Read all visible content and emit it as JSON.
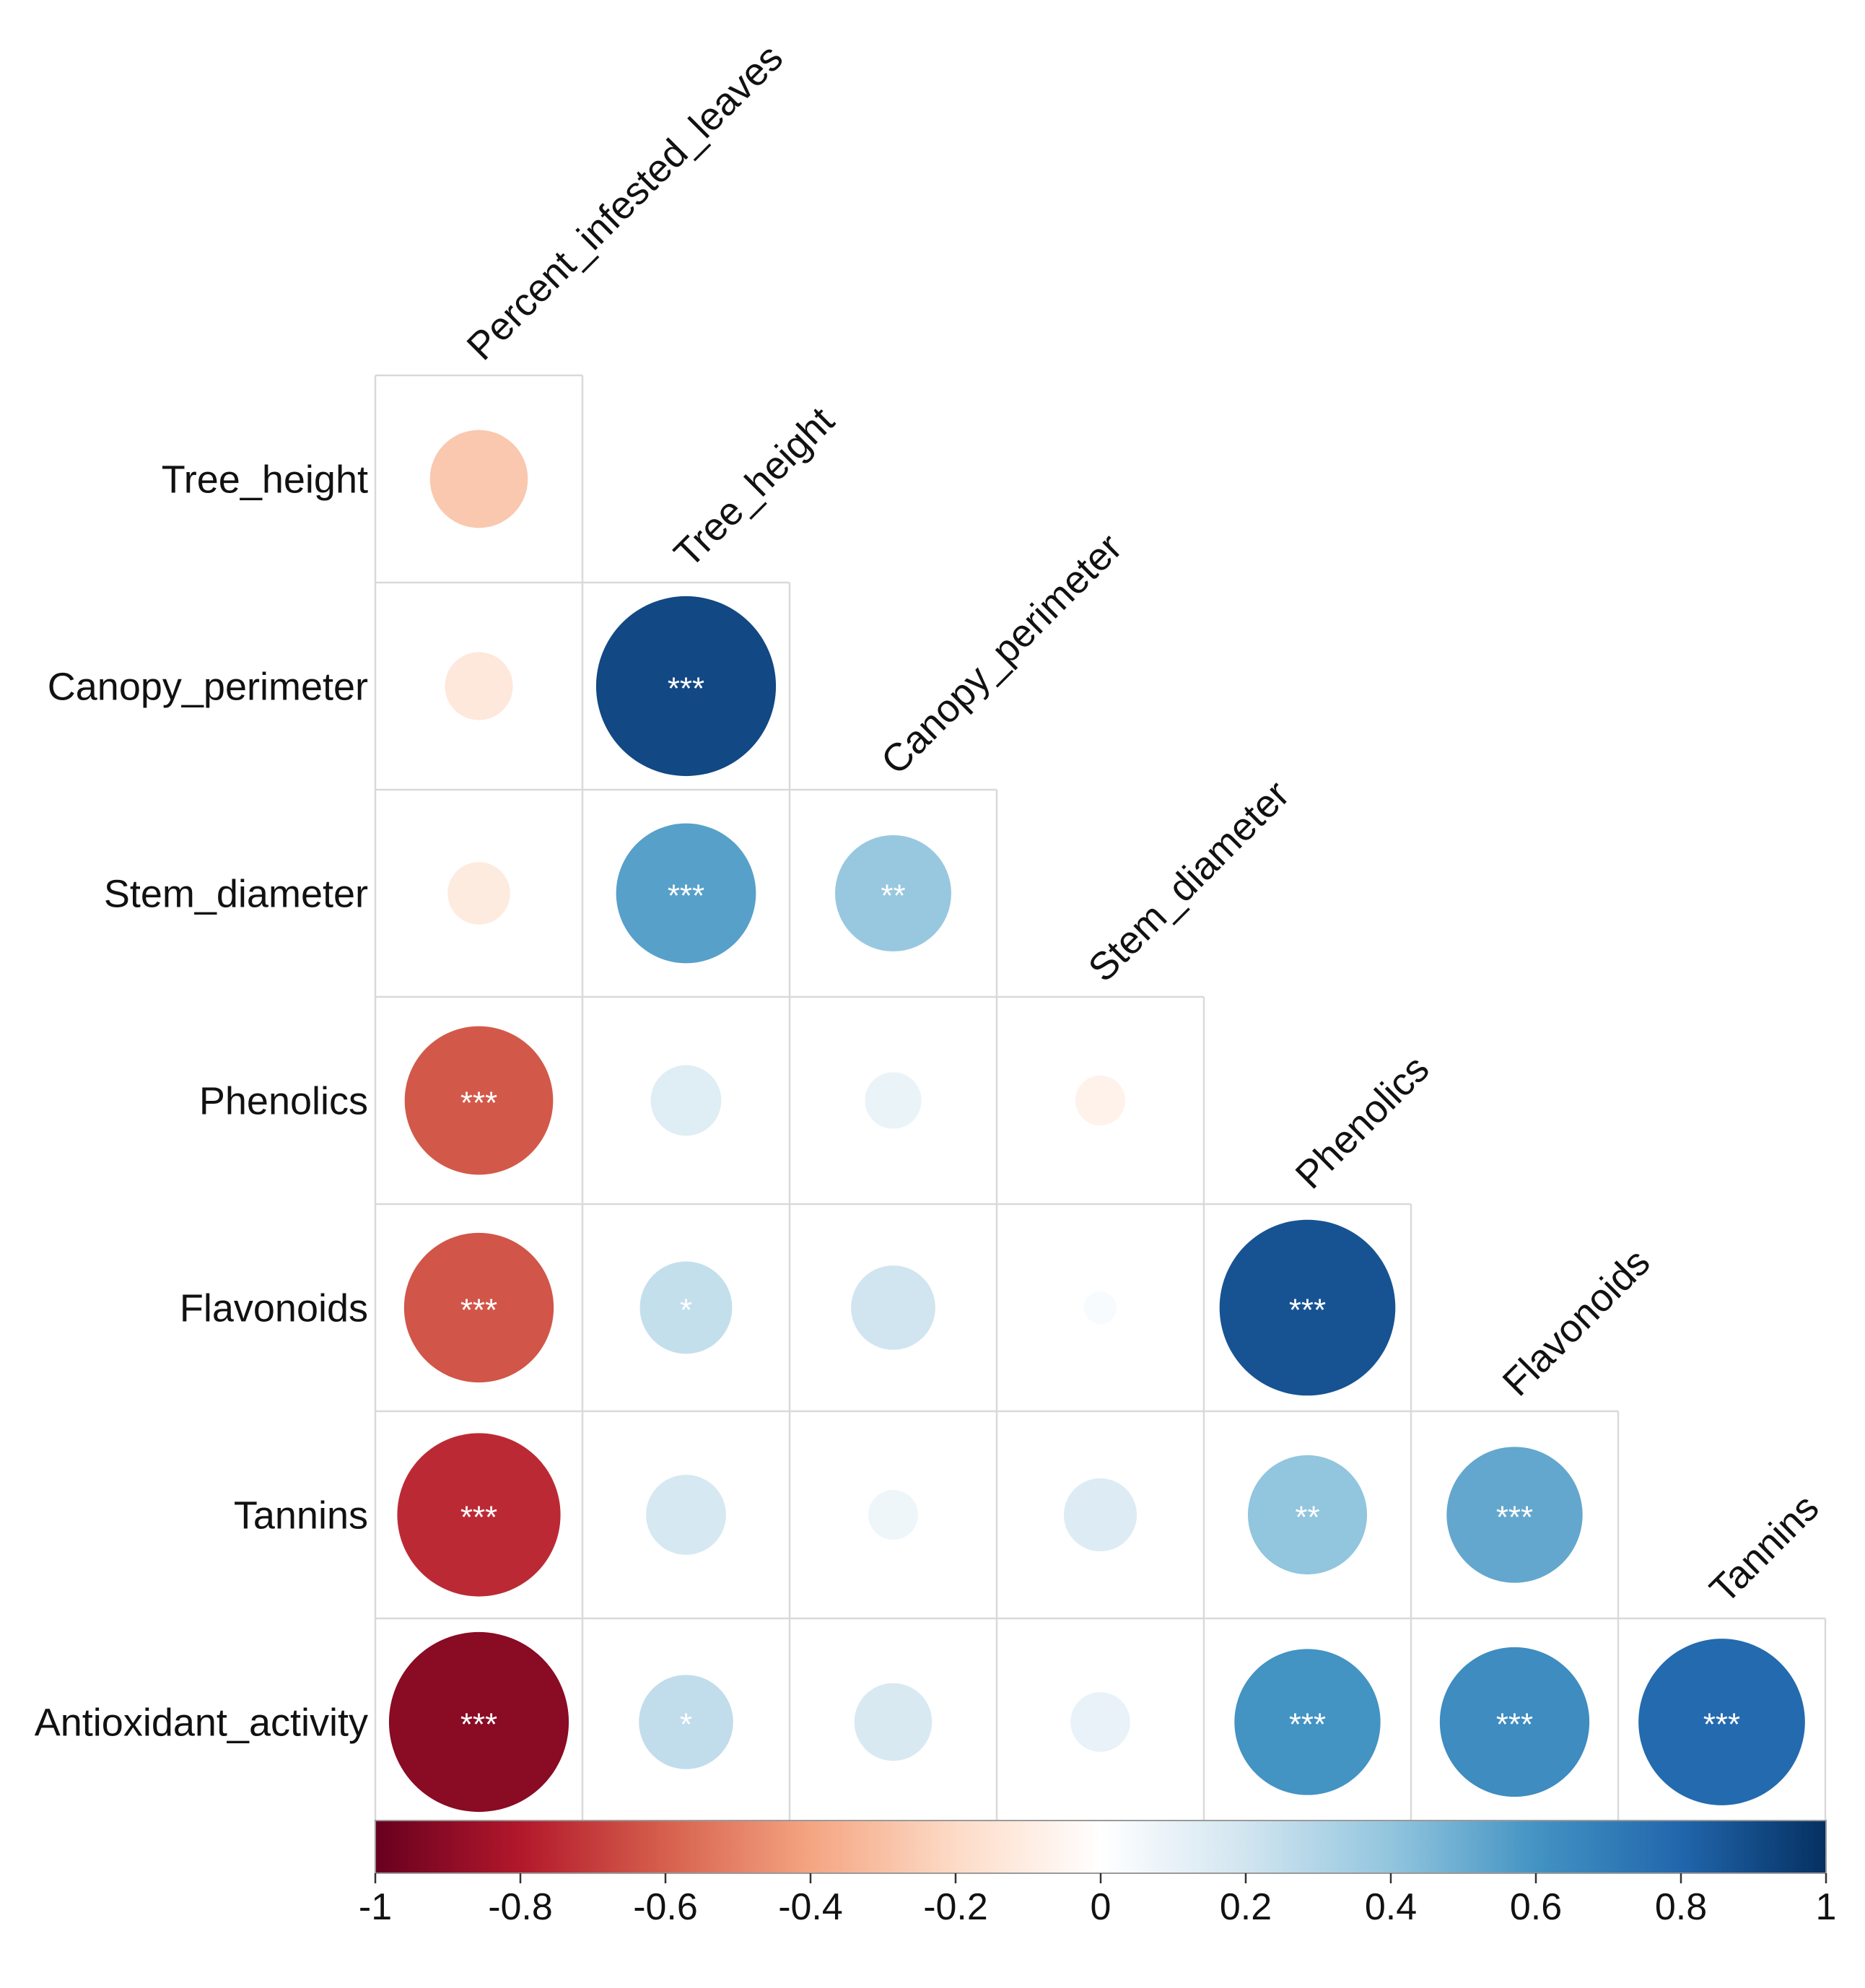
{
  "chart_data": {
    "type": "correlation-matrix",
    "shape": "lower-triangle",
    "column_variables": [
      "Percent_infested_leaves",
      "Tree_height",
      "Canopy_perimeter",
      "Stem_diameter",
      "Phenolics",
      "Flavonoids",
      "Tannins"
    ],
    "row_variables": [
      "Tree_height",
      "Canopy_perimeter",
      "Stem_diameter",
      "Phenolics",
      "Flavonoids",
      "Tannins",
      "Antioxidant_activity"
    ],
    "cells": [
      {
        "row": "Tree_height",
        "col": "Percent_infested_leaves",
        "r": -0.27,
        "sig": ""
      },
      {
        "row": "Canopy_perimeter",
        "col": "Percent_infested_leaves",
        "r": -0.13,
        "sig": ""
      },
      {
        "row": "Canopy_perimeter",
        "col": "Tree_height",
        "r": 0.91,
        "sig": "***"
      },
      {
        "row": "Stem_diameter",
        "col": "Percent_infested_leaves",
        "r": -0.11,
        "sig": ""
      },
      {
        "row": "Stem_diameter",
        "col": "Tree_height",
        "r": 0.55,
        "sig": "***"
      },
      {
        "row": "Stem_diameter",
        "col": "Canopy_perimeter",
        "r": 0.38,
        "sig": "**"
      },
      {
        "row": "Phenolics",
        "col": "Percent_infested_leaves",
        "r": -0.62,
        "sig": "***"
      },
      {
        "row": "Phenolics",
        "col": "Tree_height",
        "r": 0.14,
        "sig": ""
      },
      {
        "row": "Phenolics",
        "col": "Canopy_perimeter",
        "r": 0.09,
        "sig": ""
      },
      {
        "row": "Phenolics",
        "col": "Stem_diameter",
        "r": -0.07,
        "sig": ""
      },
      {
        "row": "Flavonoids",
        "col": "Percent_infested_leaves",
        "r": -0.63,
        "sig": "***"
      },
      {
        "row": "Flavonoids",
        "col": "Tree_height",
        "r": 0.24,
        "sig": "*"
      },
      {
        "row": "Flavonoids",
        "col": "Canopy_perimeter",
        "r": 0.2,
        "sig": ""
      },
      {
        "row": "Flavonoids",
        "col": "Stem_diameter",
        "r": 0.03,
        "sig": ""
      },
      {
        "row": "Flavonoids",
        "col": "Phenolics",
        "r": 0.87,
        "sig": "***"
      },
      {
        "row": "Tannins",
        "col": "Percent_infested_leaves",
        "r": -0.75,
        "sig": "***"
      },
      {
        "row": "Tannins",
        "col": "Tree_height",
        "r": 0.18,
        "sig": ""
      },
      {
        "row": "Tannins",
        "col": "Canopy_perimeter",
        "r": 0.07,
        "sig": ""
      },
      {
        "row": "Tannins",
        "col": "Stem_diameter",
        "r": 0.15,
        "sig": ""
      },
      {
        "row": "Tannins",
        "col": "Phenolics",
        "r": 0.4,
        "sig": "**"
      },
      {
        "row": "Tannins",
        "col": "Flavonoids",
        "r": 0.52,
        "sig": "***"
      },
      {
        "row": "Antioxidant_activity",
        "col": "Percent_infested_leaves",
        "r": -0.91,
        "sig": "***"
      },
      {
        "row": "Antioxidant_activity",
        "col": "Tree_height",
        "r": 0.25,
        "sig": "*"
      },
      {
        "row": "Antioxidant_activity",
        "col": "Canopy_perimeter",
        "r": 0.17,
        "sig": ""
      },
      {
        "row": "Antioxidant_activity",
        "col": "Stem_diameter",
        "r": 0.1,
        "sig": ""
      },
      {
        "row": "Antioxidant_activity",
        "col": "Phenolics",
        "r": 0.6,
        "sig": "***"
      },
      {
        "row": "Antioxidant_activity",
        "col": "Flavonoids",
        "r": 0.63,
        "sig": "***"
      },
      {
        "row": "Antioxidant_activity",
        "col": "Tannins",
        "r": 0.78,
        "sig": "***"
      }
    ],
    "colorbar": {
      "range": [
        -1,
        1
      ],
      "tick_labels": [
        "-1",
        "-0.8",
        "-0.6",
        "-0.4",
        "-0.2",
        "0",
        "0.2",
        "0.4",
        "0.6",
        "0.8",
        "1"
      ],
      "colors": [
        "#67001f",
        "#b2182b",
        "#d6604d",
        "#f4a582",
        "#fddbc7",
        "#ffffff",
        "#d1e5f0",
        "#92c5de",
        "#4393c3",
        "#2166ac",
        "#053061"
      ]
    }
  }
}
